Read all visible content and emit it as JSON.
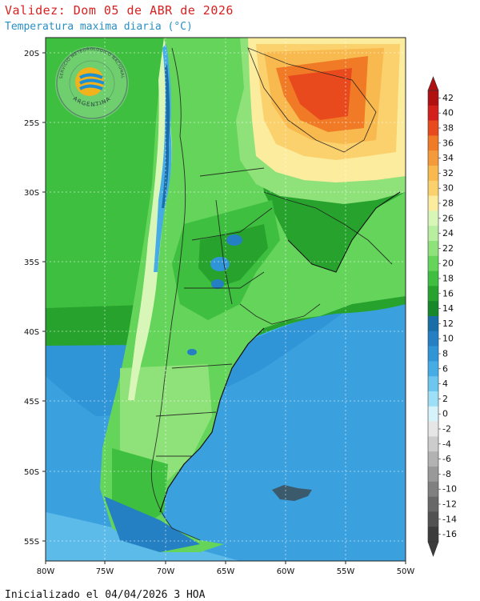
{
  "title": "Validez: Dom 05 de ABR de 2026",
  "subtitle": "Temperatura maxima diaria (°C)",
  "footer": "Inicializado el 04/04/2026 3 HOA",
  "logo": {
    "top_text": "SERVICIO METEOROLOGICO NACIONAL",
    "bottom_text": "ARGENTINA"
  },
  "map": {
    "lat_labels": [
      "20S",
      "25S",
      "30S",
      "35S",
      "40S",
      "45S",
      "50S",
      "55S"
    ],
    "lon_labels": [
      "80W",
      "75W",
      "70W",
      "65W",
      "60W",
      "55W",
      "50W"
    ]
  },
  "colorbar": {
    "labels": [
      "42",
      "40",
      "38",
      "36",
      "34",
      "32",
      "30",
      "28",
      "26",
      "24",
      "22",
      "20",
      "18",
      "16",
      "14",
      "12",
      "10",
      "8",
      "6",
      "4",
      "2",
      "0",
      "-2",
      "-4",
      "-6",
      "-8",
      "-10",
      "-12",
      "-14",
      "-16"
    ],
    "colors": [
      "#b01010",
      "#d4201a",
      "#e84a1e",
      "#f07a26",
      "#f59a3a",
      "#f8b94e",
      "#fbd16e",
      "#fcec9e",
      "#d8f6b8",
      "#b8eea0",
      "#8fe27a",
      "#64d45a",
      "#3fbf3f",
      "#27a32d",
      "#17882a",
      "#1a6ea8",
      "#2480c2",
      "#2f95d6",
      "#46ace6",
      "#6cc6f0",
      "#9cdff6",
      "#d6f2fb",
      "#e6e6e6",
      "#cccccc",
      "#b2b2b2",
      "#999999",
      "#808080",
      "#686868",
      "#525252",
      "#3c3c3c"
    ]
  }
}
